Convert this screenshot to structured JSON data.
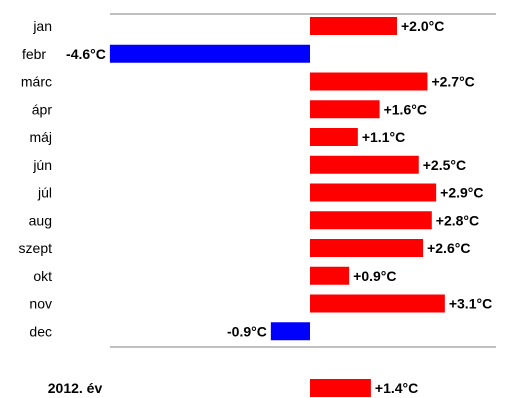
{
  "chart_data": {
    "type": "bar",
    "orientation": "horizontal",
    "title": "",
    "xlabel": "",
    "ylabel": "",
    "xlim": [
      -4.6,
      3.1
    ],
    "grid": false,
    "legend": "none",
    "value_suffix": "°C",
    "categories": [
      "jan",
      "febr",
      "márc",
      "ápr",
      "máj",
      "jún",
      "júl",
      "aug",
      "szept",
      "okt",
      "nov",
      "dec"
    ],
    "values": [
      2.0,
      -4.6,
      2.7,
      1.6,
      1.1,
      2.5,
      2.9,
      2.8,
      2.6,
      0.9,
      3.1,
      -0.9
    ],
    "value_labels": [
      "+2.0°C",
      "-4.6°C",
      "+2.7°C",
      "+1.6°C",
      "+1.1°C",
      "+2.5°C",
      "+2.9°C",
      "+2.8°C",
      "+2.6°C",
      "+0.9°C",
      "+3.1°C",
      "-0.9°C"
    ],
    "summary": {
      "label": "2012. év",
      "value": 1.4,
      "value_label": "+1.4°C"
    },
    "colors": {
      "positive": "#ff0000",
      "negative": "#0000ff",
      "axis": "#808080"
    }
  }
}
